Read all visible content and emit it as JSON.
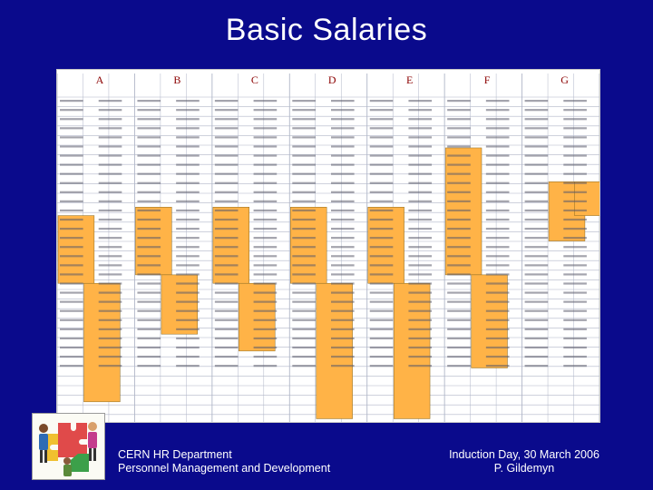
{
  "slide": {
    "title": "Basic Salaries",
    "footer_left": [
      "CERN HR Department",
      "Personnel Management and Development"
    ],
    "footer_right": [
      "Induction Day, 30 March 2006",
      "P. Gildemyn"
    ]
  },
  "salary_table": {
    "career_paths": [
      "A",
      "B",
      "C",
      "D",
      "E",
      "F",
      "G"
    ],
    "highlight_color": "#ffb347",
    "grid_color": "#b0b6c8",
    "header_color": "#8b0000"
  },
  "logo": {
    "icon": "people-puzzle-icon"
  }
}
